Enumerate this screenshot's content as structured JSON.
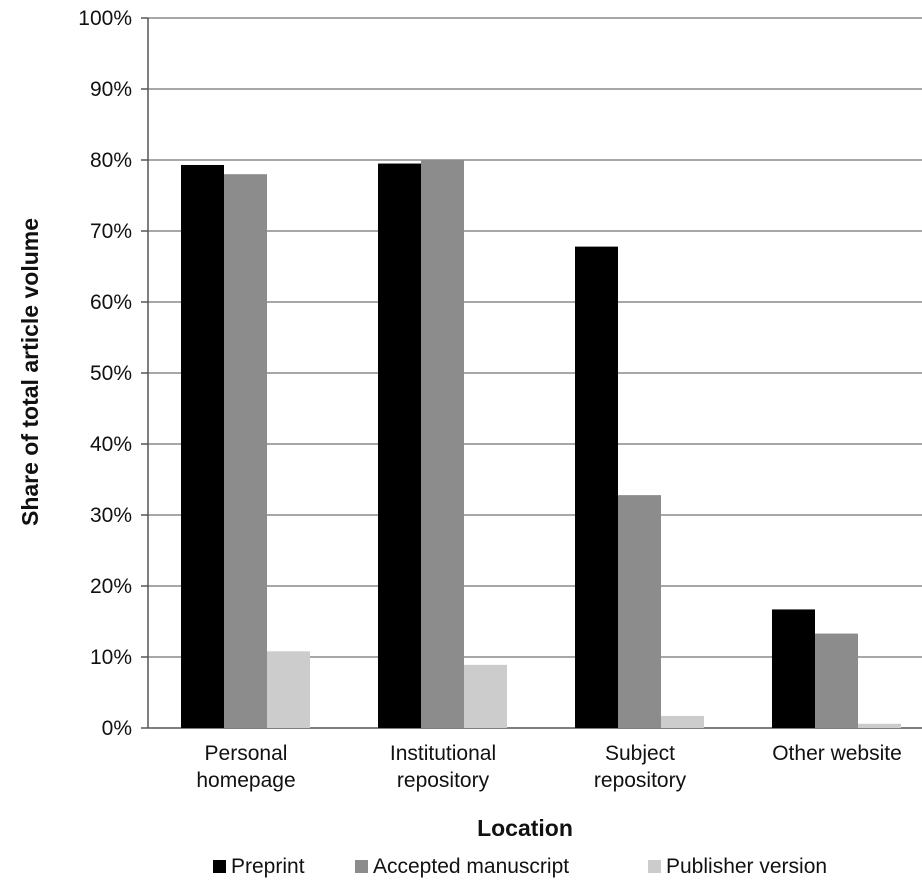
{
  "chart_data": {
    "type": "bar",
    "title": "",
    "xlabel": "Location",
    "ylabel": "Share of total article volume",
    "ylim": [
      0,
      100
    ],
    "yticks": [
      0,
      10,
      20,
      30,
      40,
      50,
      60,
      70,
      80,
      90,
      100
    ],
    "ytick_format": "{v}%",
    "grid": true,
    "legend_position": "bottom",
    "categories": [
      [
        "Personal",
        "homepage"
      ],
      [
        "Institutional",
        "repository"
      ],
      [
        "Subject",
        "repository"
      ],
      [
        "Other website"
      ]
    ],
    "series": [
      {
        "name": "Preprint",
        "color": "#000000",
        "values": [
          79.3,
          79.5,
          67.8,
          16.7
        ]
      },
      {
        "name": "Accepted manuscript",
        "color": "#8c8c8c",
        "values": [
          78.0,
          80.0,
          32.8,
          13.3
        ]
      },
      {
        "name": "Publisher version",
        "color": "#cccccc",
        "values": [
          10.8,
          8.9,
          1.7,
          0.6
        ]
      }
    ]
  }
}
